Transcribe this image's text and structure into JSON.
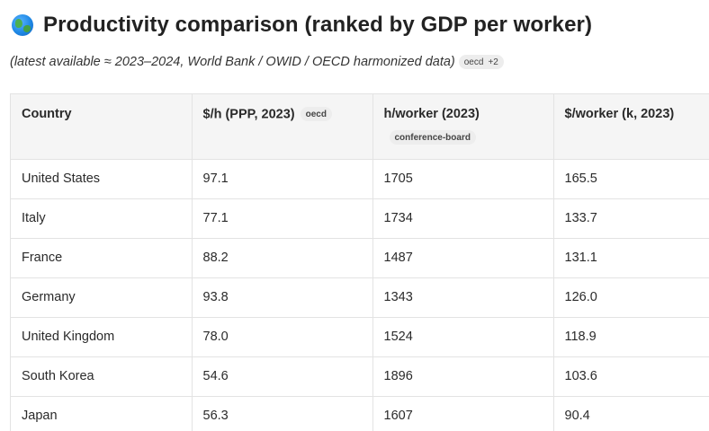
{
  "header": {
    "globe_icon": "globe-icon",
    "title": "Productivity comparison (ranked by GDP per worker)"
  },
  "subtitle": {
    "text": "(latest available ≈ 2023–2024, World Bank / OWID / OECD harmonized data)",
    "source_pill": {
      "label": "oecd",
      "extra": "+2"
    }
  },
  "table": {
    "columns": [
      {
        "label": "Country",
        "pill": ""
      },
      {
        "label": "$/h (PPP, 2023)",
        "pill": "oecd"
      },
      {
        "label": "h/worker (2023)",
        "pill": "conference-board"
      },
      {
        "label": "$/worker (k, 2023)",
        "pill": ""
      }
    ],
    "rows": [
      {
        "country": "United States",
        "usd_per_hour": "97.1",
        "hours_per_worker": "1705",
        "usd_per_worker": "165.5"
      },
      {
        "country": "Italy",
        "usd_per_hour": "77.1",
        "hours_per_worker": "1734",
        "usd_per_worker": "133.7"
      },
      {
        "country": "France",
        "usd_per_hour": "88.2",
        "hours_per_worker": "1487",
        "usd_per_worker": "131.1"
      },
      {
        "country": "Germany",
        "usd_per_hour": "93.8",
        "hours_per_worker": "1343",
        "usd_per_worker": "126.0"
      },
      {
        "country": "United Kingdom",
        "usd_per_hour": "78.0",
        "hours_per_worker": "1524",
        "usd_per_worker": "118.9"
      },
      {
        "country": "South Korea",
        "usd_per_hour": "54.6",
        "hours_per_worker": "1896",
        "usd_per_worker": "103.6"
      },
      {
        "country": "Japan",
        "usd_per_hour": "56.3",
        "hours_per_worker": "1607",
        "usd_per_worker": "90.4"
      }
    ]
  }
}
